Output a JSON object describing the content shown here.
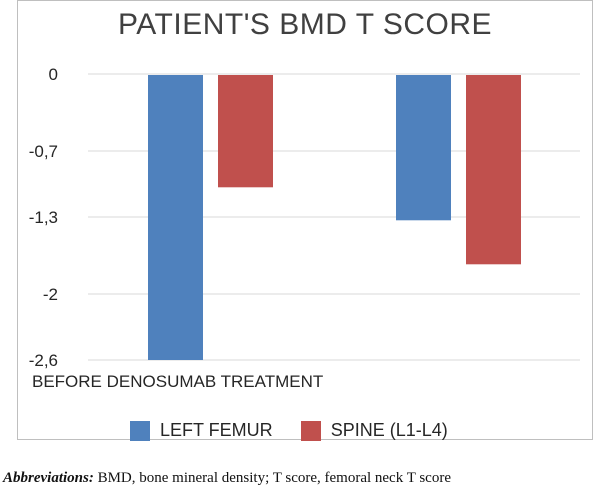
{
  "chart_data": {
    "type": "bar",
    "title": "PATIENT'S BMD T SCORE",
    "categories": [
      "BEFORE DENOSUMAB TREATMENT",
      ""
    ],
    "series": [
      {
        "name": "LEFT FEMUR",
        "values": [
          -2.6,
          -1.33
        ],
        "color": "#4f81bd"
      },
      {
        "name": "SPINE (L1-L4)",
        "values": [
          -1.03,
          -1.73
        ],
        "color": "#c0504d"
      }
    ],
    "yticks": [
      "0",
      "-0,7",
      "-1,3",
      "-2",
      "-2,6"
    ],
    "ylim": [
      -2.6,
      0
    ],
    "grid": true,
    "legend_position": "bottom"
  },
  "footnote": {
    "label": "Abbreviations:",
    "text": " BMD, bone mineral density; T score, femoral neck T score"
  }
}
